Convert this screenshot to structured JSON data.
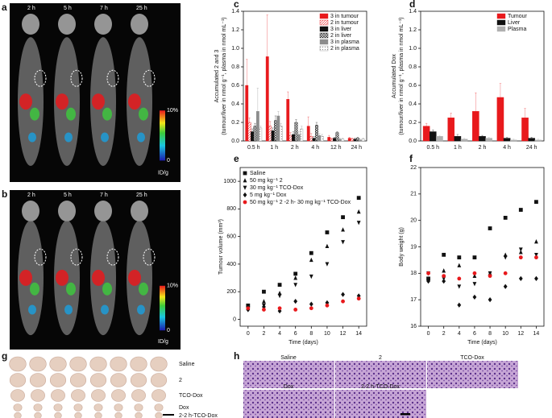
{
  "chart_data": [
    {
      "type": "bar",
      "panel": "c",
      "ylabel": [
        "Accumulated 2 and 3",
        "(tumour/liver in nmol g⁻¹, plasma in nmol mL⁻¹)"
      ],
      "categories": [
        "0.5 h",
        "1 h",
        "2 h",
        "4 h",
        "12 h",
        "24 h"
      ],
      "ylim": [
        0,
        1.4
      ],
      "yticks": [
        {
          "value": 0,
          "label": "0.0"
        },
        0.2,
        0.4,
        0.6,
        0.8,
        {
          "value": 1,
          "label": "1.0"
        },
        1.2,
        1.4
      ],
      "legend": "upper right",
      "series": [
        {
          "name": "3 in tumour",
          "color": "#e8191c",
          "pattern": "solid",
          "values": [
            0.6,
            0.91,
            0.45,
            0.16,
            0.04,
            0.03
          ],
          "errors": [
            0.28,
            0.45,
            0.08,
            0.1,
            0.02,
            0.01
          ]
        },
        {
          "name": "2 in tumour",
          "color": "#e8191c",
          "pattern": "hatch",
          "values": [
            0.2,
            0.16,
            0.06,
            0.05,
            0.02,
            0.02
          ],
          "errors": [
            0.05,
            0.05,
            0.03,
            0.03,
            0.01,
            0.01
          ]
        },
        {
          "name": "3 in liver",
          "color": "#111111",
          "pattern": "solid",
          "values": [
            0.1,
            0.11,
            0.07,
            0.03,
            0.03,
            0.02
          ],
          "errors": [
            0.03,
            0.03,
            0.03,
            0.02,
            0.01,
            0.01
          ]
        },
        {
          "name": "2 in liver",
          "color": "#111111",
          "pattern": "cross",
          "values": [
            0.16,
            0.22,
            0.2,
            0.17,
            0.09,
            0.03
          ],
          "errors": [
            0.03,
            0.05,
            0.03,
            0.03,
            0.01,
            0.01
          ]
        },
        {
          "name": "3 in plasma",
          "color": "#8c8c8c",
          "pattern": "solid",
          "values": [
            0.32,
            0.27,
            0.07,
            0.06,
            0.02,
            0.01
          ],
          "errors": [
            0.25,
            0.05,
            0.03,
            0.02,
            0.01,
            0.01
          ]
        },
        {
          "name": "2 in plasma",
          "color": "#8c8c8c",
          "pattern": "dots",
          "values": [
            0.14,
            0.16,
            0.13,
            0.05,
            0.02,
            0.02
          ],
          "errors": [
            0.02,
            0.03,
            0.03,
            0.02,
            0.01,
            0.01
          ]
        }
      ]
    },
    {
      "type": "bar",
      "panel": "d",
      "ylabel": [
        "Accumulated Dox",
        "(tumour/liver in nmol g⁻¹, plasma in nmol mL⁻¹)"
      ],
      "categories": [
        "0.5 h",
        "1 h",
        "2 h",
        "4 h",
        "24 h"
      ],
      "ylim": [
        0,
        1.4
      ],
      "yticks": [
        {
          "value": 0,
          "label": "0.0"
        },
        0.2,
        0.4,
        0.6,
        0.8,
        {
          "value": 1,
          "label": "1.0"
        },
        1.2,
        1.4
      ],
      "legend": "upper right",
      "series": [
        {
          "name": "Tumour",
          "color": "#e8191c",
          "pattern": "solid",
          "values": [
            0.16,
            0.25,
            0.32,
            0.47,
            0.25
          ],
          "errors": [
            0.03,
            0.05,
            0.2,
            0.15,
            0.1
          ]
        },
        {
          "name": "Liver",
          "color": "#111111",
          "pattern": "solid",
          "values": [
            0.1,
            0.05,
            0.05,
            0.03,
            0.03
          ],
          "errors": [
            0.02,
            0.02,
            0.01,
            0.01,
            0.01
          ]
        },
        {
          "name": "Plasma",
          "color": "#b0b0b0",
          "pattern": "solid",
          "values": [
            0.05,
            0.02,
            0.03,
            0.01,
            0.01
          ],
          "errors": [
            0.01,
            0.01,
            0.01,
            0.01,
            0.01
          ]
        }
      ]
    },
    {
      "type": "scatter",
      "panel": "e",
      "ylabel": [
        "Tumour volume (mm³)"
      ],
      "xlabel": "Time (days)",
      "x": [
        0,
        2,
        4,
        6,
        8,
        10,
        12,
        14
      ],
      "xlim": [
        -1,
        15
      ],
      "xticks": [
        0,
        2,
        4,
        6,
        8,
        10,
        12,
        14
      ],
      "ylim": [
        -50,
        1100
      ],
      "yticks": [
        0,
        200,
        400,
        600,
        800,
        1000
      ],
      "legend": "upper left",
      "series": [
        {
          "name": "Saline",
          "color": "#111111",
          "marker": "square",
          "values": [
            100,
            200,
            250,
            330,
            480,
            630,
            740,
            880
          ]
        },
        {
          "name": "50 mg kg⁻¹ 2",
          "color": "#111111",
          "marker": "triangle-up",
          "values": [
            90,
            130,
            190,
            300,
            430,
            530,
            650,
            780
          ]
        },
        {
          "name": "30 mg kg⁻¹ TCO-Dox",
          "color": "#111111",
          "marker": "triangle-down",
          "values": [
            80,
            100,
            170,
            250,
            310,
            400,
            560,
            700
          ]
        },
        {
          "name": "5 mg kg⁻¹ Dox",
          "color": "#111111",
          "marker": "diamond",
          "values": [
            70,
            90,
            60,
            130,
            110,
            120,
            180,
            170
          ]
        },
        {
          "name": "50 mg kg⁻¹ 2 -2 h- 30 mg kg⁻¹ TCO-Dox",
          "color": "#e8191c",
          "marker": "circle",
          "values": [
            80,
            70,
            80,
            70,
            80,
            100,
            130,
            150
          ]
        }
      ]
    },
    {
      "type": "scatter",
      "panel": "f",
      "ylabel": [
        "Body weight (g)"
      ],
      "xlabel": "Time (days)",
      "x": [
        0,
        2,
        4,
        6,
        8,
        10,
        12,
        14
      ],
      "xlim": [
        -1,
        15
      ],
      "xticks": [
        0,
        2,
        4,
        6,
        8,
        10,
        12,
        14
      ],
      "ylim": [
        16,
        22
      ],
      "yticks": [
        16,
        17,
        18,
        19,
        20,
        21,
        22
      ],
      "series": [
        {
          "color": "#111111",
          "marker": "square",
          "values": [
            17.8,
            18.7,
            18.6,
            18.6,
            19.7,
            20.1,
            20.4,
            20.7
          ]
        },
        {
          "color": "#111111",
          "marker": "triangle-up",
          "values": [
            17.8,
            18.1,
            18.3,
            17.9,
            18.0,
            18.7,
            18.8,
            19.2
          ]
        },
        {
          "color": "#111111",
          "marker": "triangle-down",
          "values": [
            18.0,
            17.8,
            17.5,
            17.6,
            18.0,
            18.6,
            18.9,
            18.7
          ]
        },
        {
          "color": "#111111",
          "marker": "diamond",
          "values": [
            17.7,
            17.7,
            16.8,
            17.1,
            17.0,
            17.5,
            17.8,
            17.8
          ]
        },
        {
          "color": "#e8191c",
          "marker": "circle",
          "values": [
            18.0,
            17.9,
            17.8,
            18.0,
            17.9,
            18.0,
            18.6,
            18.6
          ]
        }
      ]
    }
  ],
  "images": {
    "a": {
      "panel": "a",
      "times": [
        "2 h",
        "5 h",
        "7 h",
        "25 h"
      ],
      "scale_max": "10%",
      "scale_min": "0",
      "scale_unit": "ID/g"
    },
    "b": {
      "panel": "b",
      "times": [
        "2 h",
        "5 h",
        "7 h",
        "25 h"
      ],
      "scale_max": "10%",
      "scale_min": "0",
      "scale_unit": "ID/g"
    },
    "g": {
      "panel": "g",
      "rows": [
        "Saline",
        "2",
        "TCO-Dox",
        "Dox",
        "2-2 h-TCO-Dox"
      ]
    },
    "h": {
      "panel": "h",
      "labels": [
        "Saline",
        "2",
        "TCO-Dox",
        "Dox",
        "2-2 h-TCO-Dox"
      ]
    }
  }
}
